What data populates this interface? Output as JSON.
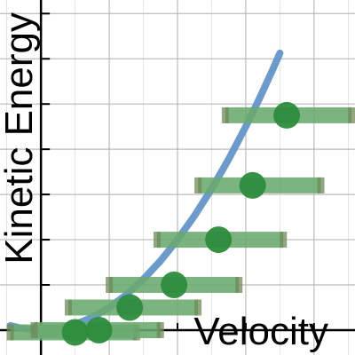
{
  "chart_data": {
    "type": "scatter",
    "xlabel": "Velocity",
    "ylabel": "Kinetic Energy",
    "xlim": [
      -0.6,
      4.6
    ],
    "ylim": [
      -0.55,
      7.3
    ],
    "grid": true,
    "colors": {
      "curve": "#6496c8",
      "points": "#2d8c3c",
      "error_bars": "#6aaa6e",
      "grid": "#b4b4b4",
      "axes": "#000000"
    },
    "series": [
      {
        "type": "line",
        "function": "y = 0.5 * x^2",
        "x": [
          -0.45,
          -0.3,
          -0.15,
          0,
          0.25,
          0.5,
          0.75,
          1,
          1.25,
          1.5,
          1.75,
          2,
          2.25,
          2.5,
          2.75,
          3,
          3.2,
          3.4,
          3.5
        ],
        "y": [
          0.1,
          0.045,
          0.011,
          0,
          0.031,
          0.125,
          0.281,
          0.5,
          0.781,
          1.125,
          1.531,
          2,
          2.531,
          3.125,
          3.781,
          4.5,
          5.12,
          5.78,
          6.125
        ]
      },
      {
        "type": "scatter_with_x_error",
        "points": [
          {
            "x": 0.5,
            "y": -0.05,
            "xmin": -0.45,
            "xmax": 1.4
          },
          {
            "x": 0.85,
            "y": 0.0,
            "xmin": -0.1,
            "xmax": 1.75
          },
          {
            "x": 1.3,
            "y": 0.5,
            "xmin": 0.4,
            "xmax": 2.3
          },
          {
            "x": 1.95,
            "y": 1.0,
            "xmin": 1.0,
            "xmax": 2.9
          },
          {
            "x": 2.6,
            "y": 2.0,
            "xmin": 1.7,
            "xmax": 3.55
          },
          {
            "x": 3.1,
            "y": 3.2,
            "xmin": 2.3,
            "xmax": 4.1
          },
          {
            "x": 3.6,
            "y": 4.75,
            "xmin": 2.7,
            "xmax": 4.55
          }
        ]
      }
    ]
  }
}
